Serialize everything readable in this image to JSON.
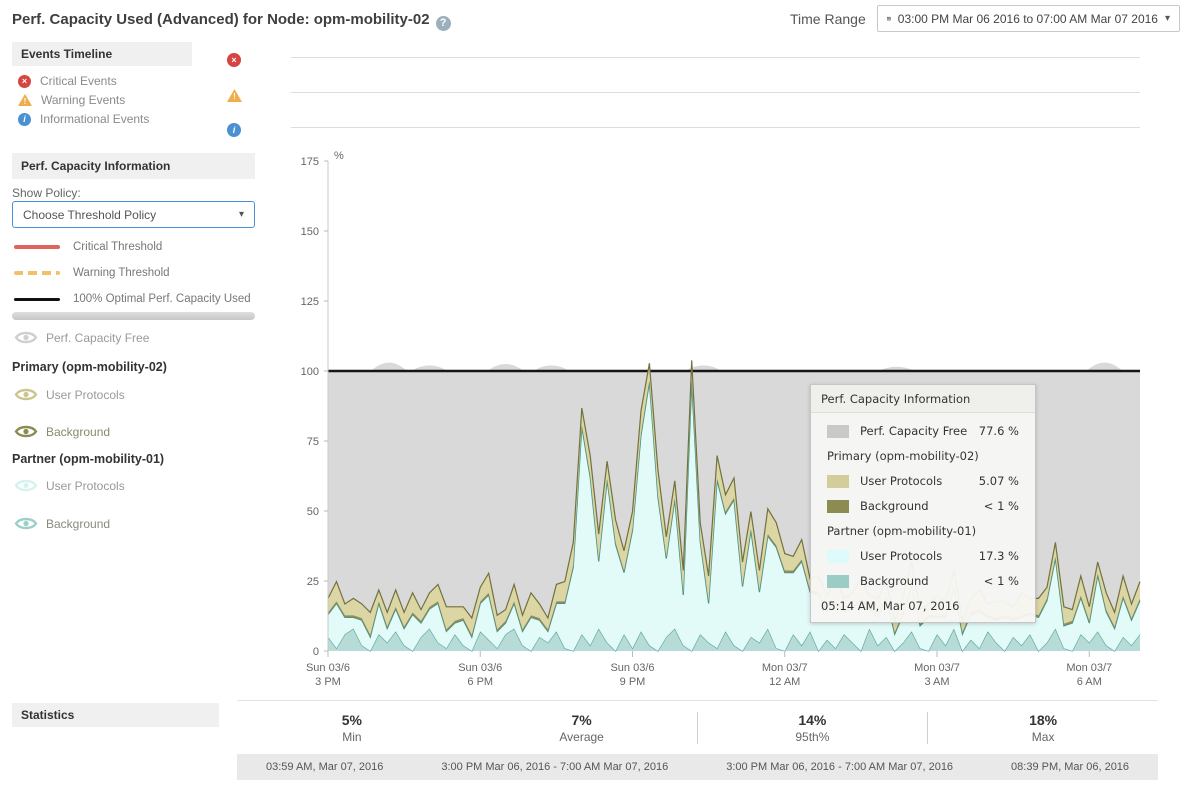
{
  "header": {
    "title": "Perf. Capacity Used (Advanced) for Node: opm-mobility-02",
    "help_icon": "?",
    "time_range_label": "Time Range",
    "time_range_value": "03:00 PM Mar 06 2016 to 07:00 AM Mar 07 2016"
  },
  "events": {
    "header": "Events Timeline",
    "critical": "Critical Events",
    "warning": "Warning Events",
    "informational": "Informational Events"
  },
  "perf_panel": {
    "header": "Perf. Capacity Information",
    "show_policy_label": "Show Policy:",
    "policy_dropdown_value": "Choose Threshold Policy",
    "thresholds": {
      "critical": "Critical Threshold",
      "warning": "Warning Threshold",
      "optimal": "100% Optimal Perf. Capacity Used"
    },
    "series_legend": {
      "free": {
        "label": "Perf. Capacity Free",
        "color": "#cfcfcf"
      },
      "primary_header": "Primary (opm-mobility-02)",
      "primary_user": {
        "label": "User Protocols",
        "color": "#cdc58f"
      },
      "primary_bg": {
        "label": "Background",
        "color": "#8b8b52"
      },
      "partner_header": "Partner (opm-mobility-01)",
      "partner_user": {
        "label": "User Protocols",
        "color": "#d5f2ee"
      },
      "partner_bg": {
        "label": "Background",
        "color": "#9ccfc9"
      }
    }
  },
  "tooltip": {
    "title": "Perf. Capacity Information",
    "free": {
      "label": "Perf. Capacity Free",
      "value": "77.6 %",
      "swatch": "#c9c9c9"
    },
    "primary_header": "Primary (opm-mobility-02)",
    "primary_user": {
      "label": "User Protocols",
      "value": "5.07 %",
      "swatch": "#d3cc9b"
    },
    "primary_bg": {
      "label": "Background",
      "value": "< 1 %",
      "swatch": "#8b8b52"
    },
    "partner_header": "Partner (opm-mobility-01)",
    "partner_user": {
      "label": "User Protocols",
      "value": "17.3 %",
      "swatch": "#dcfbfa"
    },
    "partner_bg": {
      "label": "Background",
      "value": "< 1 %",
      "swatch": "#9bccc6"
    },
    "timestamp": "05:14 AM, Mar 07, 2016"
  },
  "statistics": {
    "header": "Statistics",
    "columns": [
      {
        "value": "5%",
        "label": "Min",
        "timestamp": "03:59 AM, Mar 07, 2016"
      },
      {
        "value": "7%",
        "label": "Average",
        "timestamp": "3:00 PM Mar 06, 2016 - 7:00 AM Mar 07, 2016"
      },
      {
        "value": "14%",
        "label": "95th%",
        "timestamp": "3:00 PM Mar 06, 2016 - 7:00 AM Mar 07, 2016"
      },
      {
        "value": "18%",
        "label": "Max",
        "timestamp": "08:39 PM, Mar 06, 2016"
      }
    ]
  },
  "chart_data": {
    "type": "area",
    "title": "Perf. Capacity Used stacked area, % vs time",
    "ylabel": "%",
    "ylim": [
      0,
      175
    ],
    "yticks": [
      0,
      25,
      50,
      75,
      100,
      125,
      150,
      175
    ],
    "optimal_line": 100,
    "x_start_hour": 15,
    "x_end_hour": 31,
    "sample_interval_min": 10,
    "xticks": [
      {
        "hour": 15,
        "line1": "Sun 03/6",
        "line2": "3 PM"
      },
      {
        "hour": 18,
        "line1": "Sun 03/6",
        "line2": "6 PM"
      },
      {
        "hour": 21,
        "line1": "Sun 03/6",
        "line2": "9 PM"
      },
      {
        "hour": 24,
        "line1": "Mon 03/7",
        "line2": "12 AM"
      },
      {
        "hour": 27,
        "line1": "Mon 03/7",
        "line2": "3 AM"
      },
      {
        "hour": 30,
        "line1": "Mon 03/7",
        "line2": "6 AM"
      }
    ],
    "series": [
      {
        "name": "Partner Background",
        "fill": "#b5dcd7",
        "stroke": "#58a39a",
        "values": [
          5,
          1,
          6,
          8,
          2,
          0,
          6,
          3,
          7,
          2,
          0,
          5,
          8,
          3,
          1,
          6,
          2,
          0,
          7,
          4,
          1,
          6,
          8,
          2,
          0,
          5,
          3,
          7,
          1,
          0,
          6,
          2,
          8,
          3,
          0,
          6,
          1,
          7,
          2,
          0,
          5,
          8,
          2,
          0,
          6,
          3,
          1,
          7,
          2,
          0,
          5,
          3,
          8,
          1,
          0,
          6,
          2,
          7,
          0,
          4,
          1,
          6,
          3,
          0,
          8,
          2,
          5,
          0,
          3,
          7,
          1,
          0,
          6,
          2,
          8,
          0,
          4,
          1,
          7,
          3,
          0,
          5,
          2,
          6,
          0,
          3,
          8,
          1,
          0,
          6,
          3,
          7,
          2,
          0,
          5,
          2,
          6
        ]
      },
      {
        "name": "Partner User Protocols",
        "fill": "#e3fcfa",
        "stroke": "#3f948c",
        "values": [
          8,
          16,
          6,
          4,
          9,
          5,
          11,
          5,
          8,
          6,
          13,
          5,
          7,
          14,
          6,
          4,
          9,
          5,
          10,
          16,
          6,
          4,
          9,
          5,
          12,
          6,
          4,
          10,
          16,
          30,
          74,
          60,
          24,
          58,
          38,
          22,
          42,
          70,
          94,
          55,
          28,
          46,
          18,
          96,
          33,
          14,
          60,
          42,
          52,
          23,
          38,
          18,
          33,
          36,
          28,
          22,
          30,
          14,
          20,
          10,
          16,
          8,
          12,
          18,
          7,
          10,
          14,
          6,
          10,
          16,
          8,
          12,
          6,
          10,
          14,
          6,
          9,
          13,
          5,
          8,
          12,
          6,
          10,
          7,
          12,
          15,
          25,
          8,
          10,
          13,
          7,
          20,
          12,
          8,
          14,
          9,
          12
        ]
      },
      {
        "name": "Primary Background",
        "fill": "#8b8b52",
        "stroke": "none",
        "constant": 0.8
      },
      {
        "name": "Primary User Protocols",
        "fill": "#dcd5a1",
        "stroke": "#72713f",
        "values": [
          5,
          7,
          4,
          6,
          5,
          8,
          4,
          5,
          6,
          5,
          7,
          4,
          5,
          6,
          8,
          5,
          4,
          6,
          5,
          7,
          5,
          4,
          6,
          5,
          8,
          5,
          4,
          6,
          7,
          8,
          6,
          7,
          9,
          6,
          8,
          7,
          6,
          8,
          6,
          9,
          7,
          6,
          8,
          7,
          6,
          9,
          8,
          6,
          7,
          8,
          6,
          7,
          9,
          8,
          6,
          5,
          7,
          4,
          6,
          5,
          8,
          4,
          5,
          7,
          4,
          6,
          5,
          4,
          6,
          8,
          5,
          4,
          7,
          5,
          6,
          4,
          5,
          7,
          4,
          6,
          5,
          4,
          8,
          5,
          6,
          4,
          5,
          6,
          4,
          7,
          5,
          4,
          6,
          5,
          7,
          5,
          6
        ]
      }
    ],
    "free": {
      "name": "Perf. Capacity Free",
      "fill": "#d9d9d9",
      "cap": 100,
      "cap_bumps": [
        {
          "hour": 16.2,
          "amp": 3
        },
        {
          "hour": 17.0,
          "amp": 2
        },
        {
          "hour": 18.5,
          "amp": 2.5
        },
        {
          "hour": 19.4,
          "amp": 2
        },
        {
          "hour": 22.4,
          "amp": 2
        },
        {
          "hour": 26.2,
          "amp": 1.5
        },
        {
          "hour": 30.3,
          "amp": 3
        }
      ]
    }
  }
}
